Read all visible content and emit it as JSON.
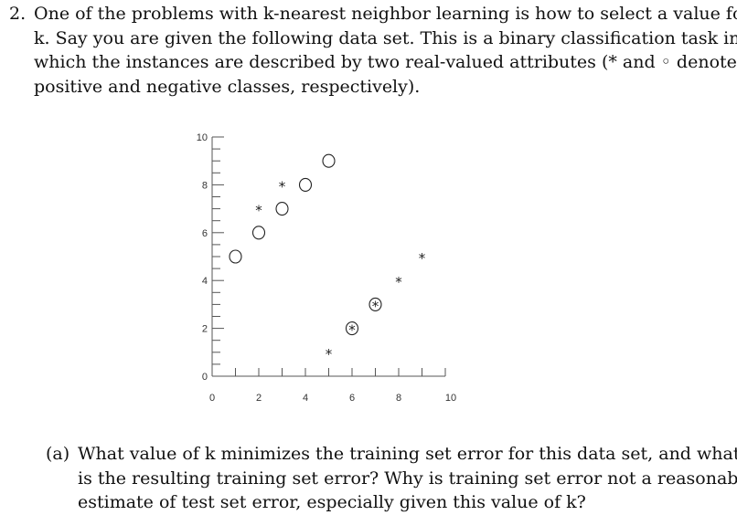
{
  "problem": {
    "number": "2.",
    "lines": [
      "One of the problems with k-nearest neighbor learning is how to select a value for",
      "k. Say you are given the following data set. This is a binary classification task in",
      "which the instances are described by two real-valued attributes (* and ◦ denote",
      "positive and negative classes, respectively)."
    ]
  },
  "chart_data": {
    "type": "scatter",
    "xlim": [
      0,
      10
    ],
    "ylim": [
      0,
      10
    ],
    "x_ticks": [
      "0",
      "2",
      "4",
      "6",
      "8",
      "10"
    ],
    "y_ticks": [
      "0",
      "2",
      "4",
      "6",
      "8",
      "10"
    ],
    "grid": false,
    "series": [
      {
        "marker": "*",
        "points": [
          [
            2,
            7
          ],
          [
            3,
            8
          ],
          [
            5,
            1
          ],
          [
            6,
            2
          ],
          [
            7,
            3
          ],
          [
            8,
            4
          ],
          [
            9,
            5
          ]
        ]
      },
      {
        "marker": "o",
        "points": [
          [
            1,
            5
          ],
          [
            2,
            6
          ],
          [
            3,
            7
          ],
          [
            4,
            8
          ],
          [
            5,
            9
          ],
          [
            6,
            2
          ],
          [
            7,
            3
          ]
        ]
      }
    ]
  },
  "question_a": {
    "label": "(a)",
    "lines": [
      "What value of k minimizes the training set error for this data set, and what",
      "is the resulting training set error? Why is training set error not a reasonable",
      "estimate of test set error, especially given this value of k?"
    ]
  }
}
